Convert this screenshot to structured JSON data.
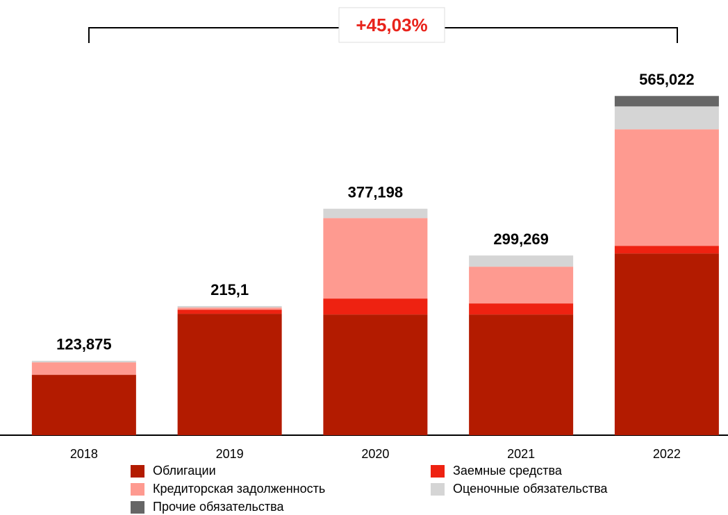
{
  "chart_data": {
    "type": "stacked_bar",
    "annotation": "+45,03%",
    "categories": [
      "2018",
      "2019",
      "2020",
      "2021",
      "2022"
    ],
    "series": [
      {
        "name": "Облигации",
        "color": "#b31b00",
        "values": [
          100.5,
          202.2,
          201,
          201,
          302.7
        ]
      },
      {
        "name": "Заемные средства",
        "color": "#ee2211",
        "values": [
          0,
          6.9,
          26.6,
          18.5,
          12.7
        ]
      },
      {
        "name": "Кредиторская задолженность",
        "color": "#fe9a90",
        "values": [
          20.8,
          3.5,
          134,
          61.2,
          194.1
        ]
      },
      {
        "name": "Оценочные обязательства",
        "color": "#d5d5d5",
        "values": [
          2.6,
          2.5,
          15.6,
          18.6,
          38.1
        ]
      },
      {
        "name": "Прочие обязательства",
        "color": "#666666",
        "values": [
          0,
          0,
          0,
          0,
          17.4
        ]
      }
    ],
    "totals": {
      "values": [
        123.875,
        215.1,
        377.198,
        299.269,
        565.022
      ],
      "value_labels": [
        "123,875",
        "215,1",
        "377,198",
        "299,269",
        "565,022"
      ]
    },
    "ylim": [
      0,
      600
    ]
  }
}
